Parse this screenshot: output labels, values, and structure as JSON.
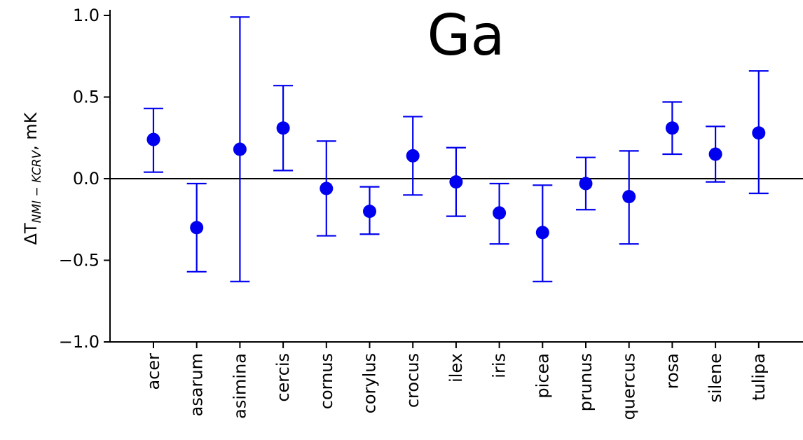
{
  "chart_data": {
    "type": "scatter",
    "title": "Ga",
    "ylabel": {
      "symbol": "ΔT",
      "subscript": "NMI − KCRV",
      "unit": ", mK"
    },
    "ylim": [
      -1.0,
      1.0
    ],
    "yticks": [
      1.0,
      0.5,
      0.0,
      -0.5,
      -1.0
    ],
    "ytick_labels": [
      "1.0",
      "0.5",
      "0.0",
      "−0.5",
      "−1.0"
    ],
    "zero_line": true,
    "grid": false,
    "marker_color": "#0000ee",
    "categories": [
      "acer",
      "asarum",
      "asimina",
      "cercis",
      "cornus",
      "corylus",
      "crocus",
      "ilex",
      "iris",
      "picea",
      "prunus",
      "quercus",
      "rosa",
      "silene",
      "tulipa"
    ],
    "values": [
      0.24,
      -0.3,
      0.18,
      0.31,
      -0.06,
      -0.2,
      0.14,
      -0.02,
      -0.21,
      -0.33,
      -0.03,
      -0.11,
      0.31,
      0.15,
      0.28
    ],
    "error_low": [
      0.04,
      -0.57,
      -0.63,
      0.05,
      -0.35,
      -0.34,
      -0.1,
      -0.23,
      -0.4,
      -0.63,
      -0.19,
      -0.4,
      0.15,
      -0.02,
      -0.09
    ],
    "error_high": [
      0.43,
      -0.03,
      0.99,
      0.57,
      0.23,
      -0.05,
      0.38,
      0.19,
      -0.03,
      -0.04,
      0.13,
      0.17,
      0.47,
      0.32,
      0.66
    ]
  }
}
